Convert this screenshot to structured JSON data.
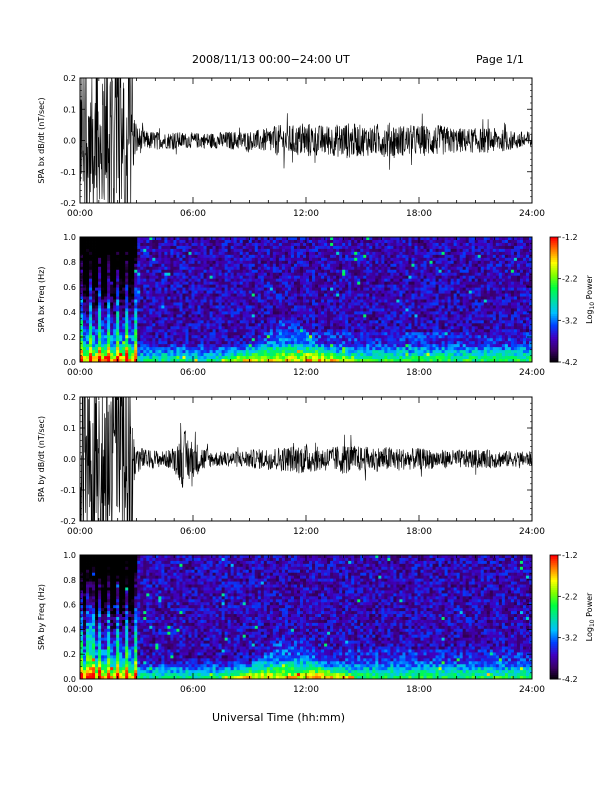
{
  "header": {
    "title": "2008/11/13  00:00−24:00 UT",
    "page": "Page 1/1"
  },
  "footer": {
    "xlabel": "Universal Time (hh:mm)"
  },
  "chart_data": [
    {
      "type": "line",
      "ylabel": "SPA bx dB/dt (nT/sec)",
      "x_ticks": [
        "00:00",
        "06:00",
        "12:00",
        "18:00",
        "24:00"
      ],
      "xlim": [
        0,
        24
      ],
      "y_ticks": [
        "0.2",
        "0.1",
        "0.0",
        "-0.1",
        "-0.2"
      ],
      "ylim": [
        -0.2,
        0.2
      ],
      "envelope": {
        "hours": [
          0,
          0.3,
          0.6,
          0.9,
          1.2,
          1.5,
          1.8,
          2.1,
          2.4,
          2.7,
          3.0,
          3.5,
          4,
          4.5,
          5,
          5.5,
          6,
          7,
          8,
          9,
          10,
          10.5,
          11,
          11.5,
          12,
          12.5,
          13,
          13.5,
          14,
          15,
          16,
          16.5,
          17,
          18,
          19,
          20,
          21,
          22,
          23,
          24
        ],
        "amplitude": [
          0.2,
          0.2,
          0.2,
          0.2,
          0.2,
          0.2,
          0.2,
          0.2,
          0.2,
          0.15,
          0.05,
          0.03,
          0.03,
          0.025,
          0.03,
          0.025,
          0.025,
          0.025,
          0.03,
          0.03,
          0.04,
          0.05,
          0.05,
          0.05,
          0.06,
          0.05,
          0.05,
          0.05,
          0.06,
          0.05,
          0.05,
          0.06,
          0.05,
          0.05,
          0.05,
          0.04,
          0.04,
          0.04,
          0.03,
          0.03
        ]
      }
    },
    {
      "type": "heatmap",
      "ylabel": "SPA bx Freq (Hz)",
      "x_ticks": [
        "00:00",
        "06:00",
        "12:00",
        "18:00",
        "24:00"
      ],
      "xlim": [
        0,
        24
      ],
      "y_ticks": [
        "1.0",
        "0.8",
        "0.6",
        "0.4",
        "0.2",
        "0.0"
      ],
      "ylim": [
        0,
        1.0
      ],
      "colorbar": {
        "label": "Log10 Power",
        "ticks": [
          "-1.2",
          "-2.2",
          "-3.2",
          "-4.2"
        ],
        "range": [
          -4.2,
          -1.2
        ],
        "colors": [
          "#000000",
          "#3a0066",
          "#4000c0",
          "#0040ff",
          "#00c0ff",
          "#00e0a0",
          "#00ff40",
          "#80ff00",
          "#ffff00",
          "#ff8000",
          "#ff0000"
        ]
      },
      "features": {
        "burst_hours": [
          0,
          3
        ],
        "arc_center_hour": 11,
        "arc_top_hz": 0.35
      }
    },
    {
      "type": "line",
      "ylabel": "SPA by dB/dt (nT/sec)",
      "x_ticks": [
        "00:00",
        "06:00",
        "12:00",
        "18:00",
        "24:00"
      ],
      "xlim": [
        0,
        24
      ],
      "y_ticks": [
        "0.2",
        "0.1",
        "0.0",
        "-0.1",
        "-0.2"
      ],
      "ylim": [
        -0.2,
        0.2
      ],
      "envelope": {
        "hours": [
          0,
          0.3,
          0.6,
          0.9,
          1.2,
          1.5,
          1.8,
          2.1,
          2.4,
          2.7,
          3.0,
          3.5,
          4,
          4.5,
          5,
          5.5,
          6,
          7,
          8,
          9,
          10,
          10.5,
          11,
          11.5,
          12,
          12.5,
          13,
          13.5,
          14,
          15,
          16,
          16.5,
          17,
          18,
          19,
          20,
          21,
          22,
          23,
          24
        ],
        "amplitude": [
          0.2,
          0.2,
          0.2,
          0.2,
          0.2,
          0.2,
          0.2,
          0.2,
          0.2,
          0.12,
          0.05,
          0.03,
          0.03,
          0.025,
          0.04,
          0.1,
          0.06,
          0.025,
          0.025,
          0.03,
          0.035,
          0.04,
          0.04,
          0.045,
          0.05,
          0.04,
          0.04,
          0.04,
          0.05,
          0.04,
          0.04,
          0.04,
          0.035,
          0.035,
          0.03,
          0.03,
          0.03,
          0.03,
          0.025,
          0.025
        ]
      }
    },
    {
      "type": "heatmap",
      "ylabel": "SPA by Freq (Hz)",
      "x_ticks": [
        "00:00",
        "06:00",
        "12:00",
        "18:00",
        "24:00"
      ],
      "xlim": [
        0,
        24
      ],
      "y_ticks": [
        "1.0",
        "0.8",
        "0.6",
        "0.4",
        "0.2",
        "0.0"
      ],
      "ylim": [
        0,
        1.0
      ],
      "colorbar": {
        "label": "Log10 Power",
        "ticks": [
          "-1.2",
          "-2.2",
          "-3.2",
          "-4.2"
        ],
        "range": [
          -4.2,
          -1.2
        ],
        "colors": [
          "#000000",
          "#3a0066",
          "#4000c0",
          "#0040ff",
          "#00c0ff",
          "#00e0a0",
          "#00ff40",
          "#80ff00",
          "#ffff00",
          "#ff8000",
          "#ff0000"
        ]
      },
      "features": {
        "burst_hours": [
          0,
          3
        ],
        "arc_center_hour": 11,
        "arc_top_hz": 0.35
      }
    }
  ]
}
